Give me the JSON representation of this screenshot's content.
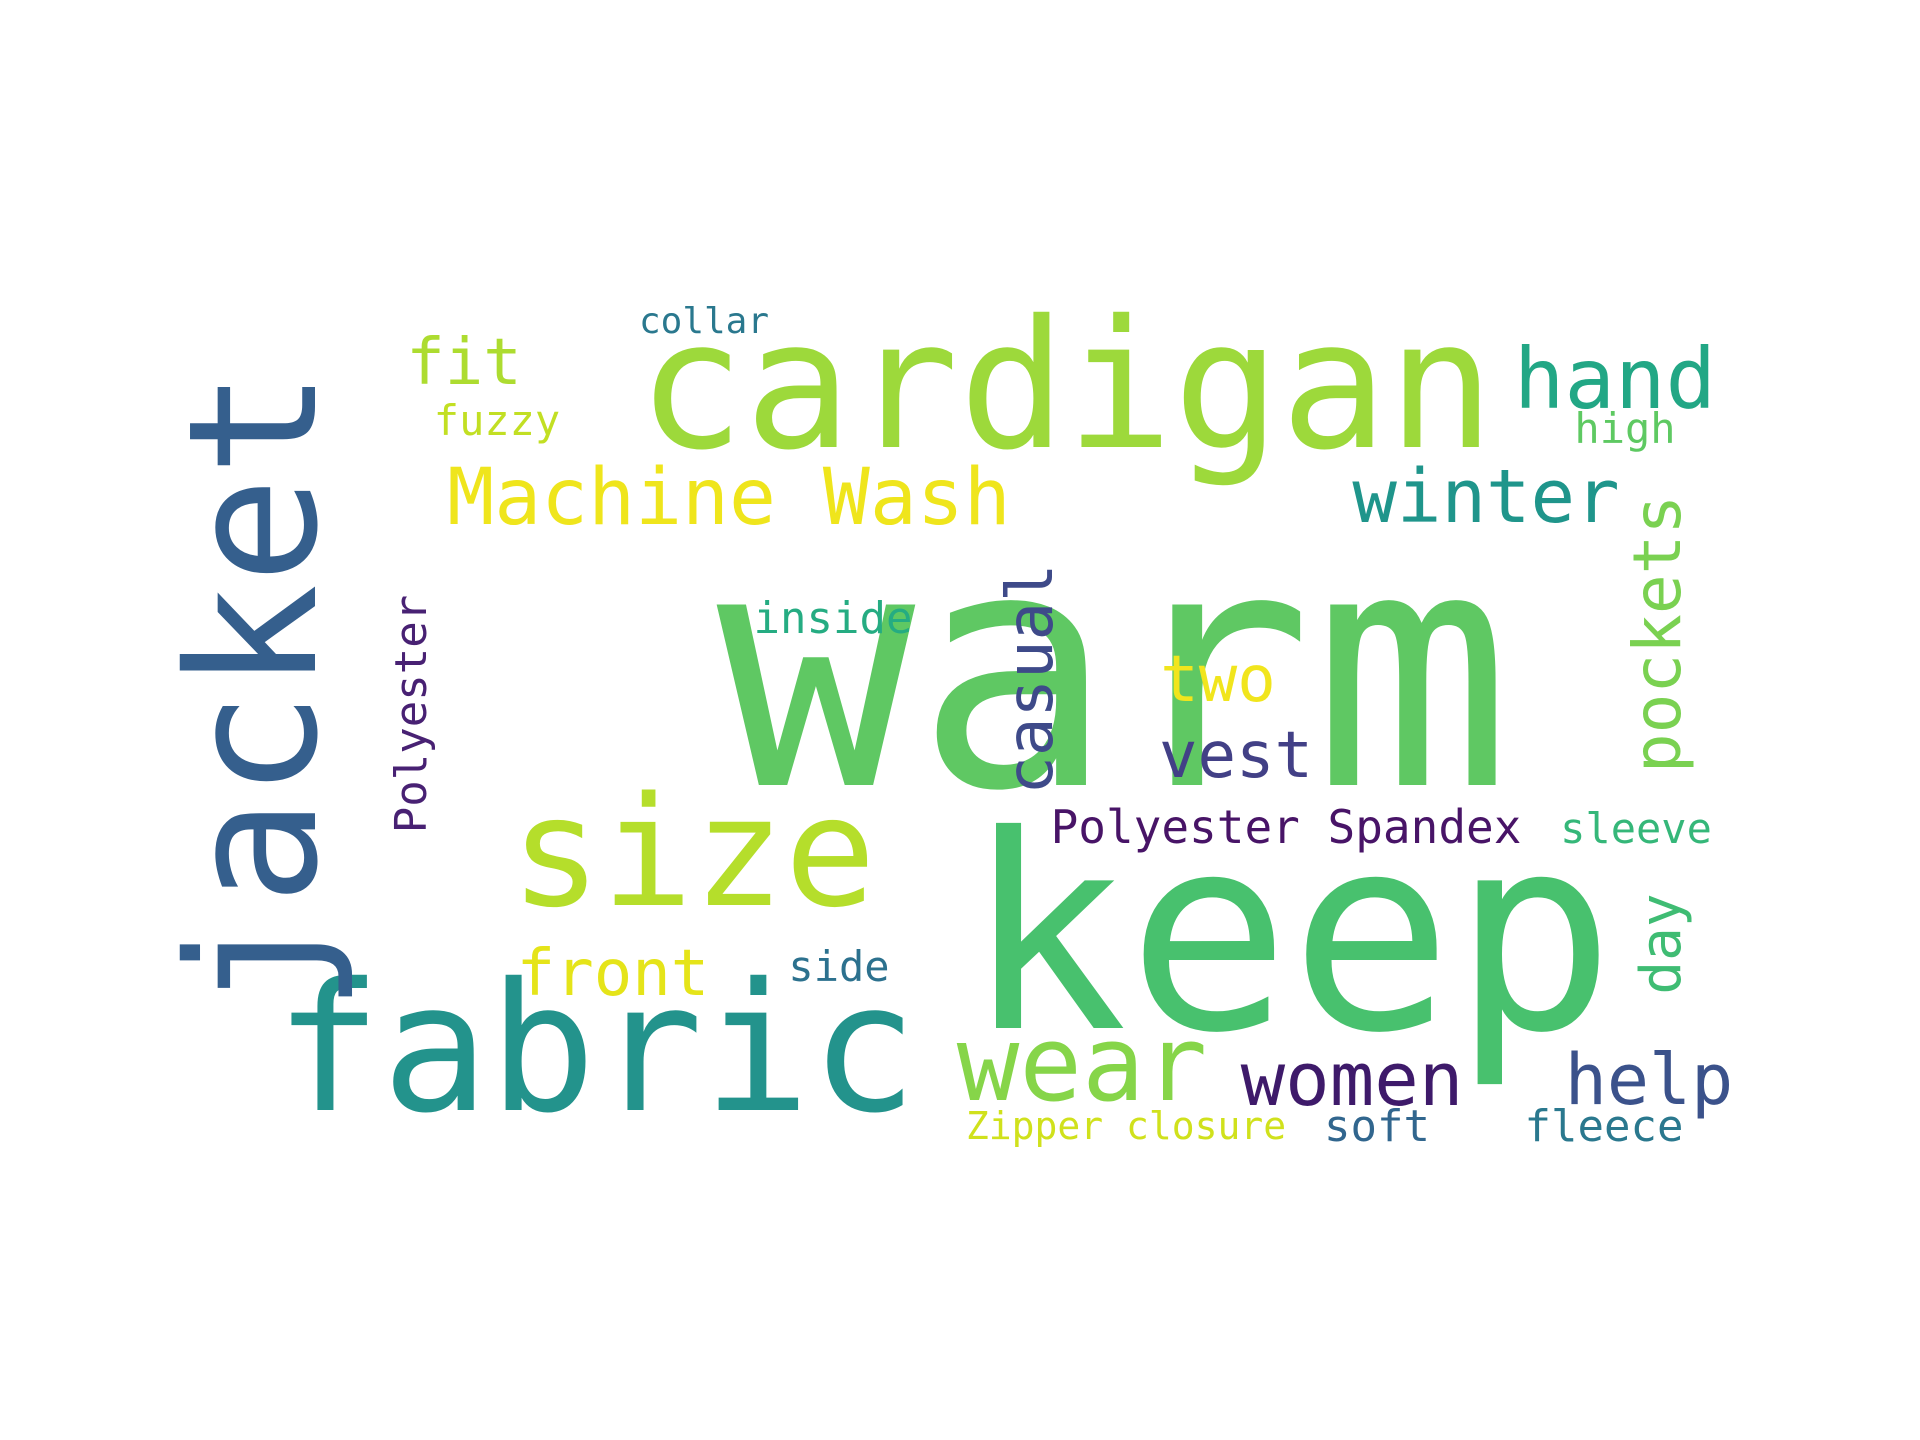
{
  "word_cloud": {
    "words": [
      {
        "text": "warm",
        "color": "#5fc863"
      },
      {
        "text": "keep",
        "color": "#48c16e"
      },
      {
        "text": "cardigan",
        "color": "#9dd93b"
      },
      {
        "text": "fabric",
        "color": "#23938c"
      },
      {
        "text": "jacket",
        "color": "#355f8d"
      },
      {
        "text": "size",
        "color": "#b5de2b"
      },
      {
        "text": "wear",
        "color": "#86d549"
      },
      {
        "text": "hand",
        "color": "#22a785"
      },
      {
        "text": "Machine Wash",
        "color": "#efe51c"
      },
      {
        "text": "winter",
        "color": "#1f958b"
      },
      {
        "text": "pockets",
        "color": "#7ad151"
      },
      {
        "text": "casual",
        "color": "#3e4a89"
      },
      {
        "text": "fit",
        "color": "#addc30"
      },
      {
        "text": "front",
        "color": "#e5e419"
      },
      {
        "text": "two",
        "color": "#f1e51d"
      },
      {
        "text": "vest",
        "color": "#424086"
      },
      {
        "text": "women",
        "color": "#3e1a6a"
      },
      {
        "text": "help",
        "color": "#3b528b"
      },
      {
        "text": "day",
        "color": "#3fbc73"
      },
      {
        "text": "Polyester Spandex",
        "color": "#481467"
      },
      {
        "text": "Polyester",
        "color": "#482173"
      },
      {
        "text": "inside",
        "color": "#25ac82"
      },
      {
        "text": "fuzzy",
        "color": "#c2df23"
      },
      {
        "text": "high",
        "color": "#5ec962"
      },
      {
        "text": "collar",
        "color": "#2a788e"
      },
      {
        "text": "sleeve",
        "color": "#35b779"
      },
      {
        "text": "side",
        "color": "#2c718e"
      },
      {
        "text": "Zipper closure",
        "color": "#d0e11c"
      },
      {
        "text": "soft",
        "color": "#31668e"
      },
      {
        "text": "fleece",
        "color": "#2a788e"
      }
    ]
  }
}
